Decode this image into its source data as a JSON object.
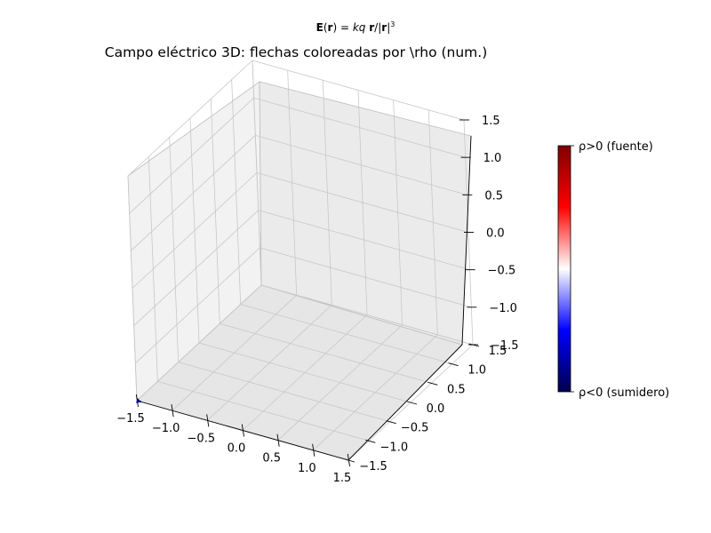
{
  "figure": {
    "suptitle": {
      "parts": [
        {
          "text": "E",
          "bold": true
        },
        {
          "text": "("
        },
        {
          "text": "r",
          "bold": true
        },
        {
          "text": ") = "
        },
        {
          "text": "kq",
          "italic": true
        },
        {
          "text": " "
        },
        {
          "text": "r",
          "bold": true
        },
        {
          "text": "/|"
        },
        {
          "text": "r",
          "bold": true
        },
        {
          "text": "|"
        },
        {
          "text": "3",
          "sup": true
        }
      ]
    }
  },
  "chart_data": {
    "type": "quiver3d",
    "title": "Campo eléctrico 3D: flechas coloreadas por \\rho (num.)",
    "xlim": [
      -1.5,
      1.5
    ],
    "ylim": [
      -1.5,
      1.5
    ],
    "zlim": [
      -1.5,
      1.5
    ],
    "x_ticks": [
      "−1.5",
      "−1.0",
      "−0.5",
      "0.0",
      "0.5",
      "1.0",
      "1.5"
    ],
    "y_ticks": [
      "−1.5",
      "−1.0",
      "−0.5",
      "0.0",
      "0.5",
      "1.0",
      "1.5"
    ],
    "z_ticks": [
      "−1.5",
      "−1.0",
      "−0.5",
      "0.0",
      "0.5",
      "1.0",
      "1.5"
    ],
    "grid": true,
    "arrows": [
      {
        "x": -1.5,
        "y": -1.5,
        "z": -1.5,
        "u": 0.06,
        "v": 0.0,
        "w": 0.0,
        "color": "#00008b"
      }
    ],
    "colorbar": {
      "colormap": "seismic",
      "stops": [
        "#00004c",
        "#0000ff",
        "#ffffff",
        "#ff0000",
        "#800000"
      ],
      "top_label": "ρ>0 (fuente)",
      "bottom_label": "ρ<0 (sumidero)"
    }
  }
}
